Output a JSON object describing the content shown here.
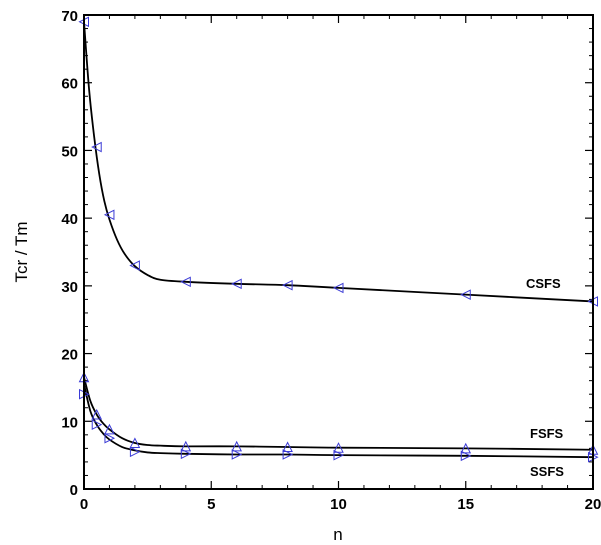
{
  "chart_data": {
    "type": "line",
    "xlabel": "n",
    "ylabel": "Tcr / Tm",
    "xlim": [
      0,
      20
    ],
    "ylim": [
      0,
      70
    ],
    "xticks": [
      0,
      5,
      10,
      15,
      20
    ],
    "yticks": [
      0,
      10,
      20,
      30,
      40,
      50,
      60,
      70
    ],
    "marker_color": "#3b3bd6",
    "line_color": "#000000",
    "series": [
      {
        "name": "CSFS",
        "marker": "triangle-left",
        "x": [
          0,
          0.5,
          1,
          2,
          4,
          6,
          8,
          10,
          15,
          20
        ],
        "y": [
          69,
          50.5,
          40.5,
          33,
          30.6,
          30.3,
          30.1,
          29.7,
          28.7,
          27.7
        ],
        "curve_x": [
          0,
          0.2,
          0.4,
          0.6,
          0.8,
          1,
          1.3,
          1.6,
          2,
          2.5,
          3,
          4,
          6,
          8,
          10,
          15,
          20
        ],
        "curve_y": [
          69,
          59,
          52,
          46.5,
          42.5,
          39.8,
          36.8,
          34.7,
          32.9,
          31.6,
          30.9,
          30.6,
          30.3,
          30.1,
          29.7,
          28.7,
          27.7
        ]
      },
      {
        "name": "FSFS",
        "marker": "triangle-up",
        "x": [
          0,
          0.5,
          1,
          2,
          4,
          6,
          8,
          10,
          15,
          20
        ],
        "y": [
          16.5,
          11,
          8.8,
          6.8,
          6.3,
          6.3,
          6.2,
          6.1,
          6.0,
          5.8
        ],
        "curve_x": [
          0,
          0.25,
          0.5,
          0.75,
          1,
          1.5,
          2,
          2.5,
          3,
          4,
          6,
          8,
          10,
          15,
          20
        ],
        "curve_y": [
          16.5,
          13,
          11,
          9.7,
          8.8,
          7.5,
          6.8,
          6.5,
          6.4,
          6.3,
          6.3,
          6.2,
          6.1,
          6.0,
          5.8
        ]
      },
      {
        "name": "SSFS",
        "marker": "triangle-right",
        "x": [
          0,
          0.5,
          1,
          2,
          4,
          6,
          8,
          10,
          15,
          20
        ],
        "y": [
          14,
          9.5,
          7.5,
          5.5,
          5.2,
          5.1,
          5.1,
          5.0,
          4.9,
          4.7
        ],
        "curve_x": [
          0,
          0.25,
          0.5,
          0.75,
          1,
          1.5,
          2,
          2.5,
          3,
          4,
          6,
          8,
          10,
          15,
          20
        ],
        "curve_y": [
          15.5,
          11.5,
          9.5,
          8.2,
          7.3,
          6.2,
          5.7,
          5.4,
          5.3,
          5.2,
          5.1,
          5.1,
          5.0,
          4.9,
          4.7
        ]
      }
    ]
  }
}
